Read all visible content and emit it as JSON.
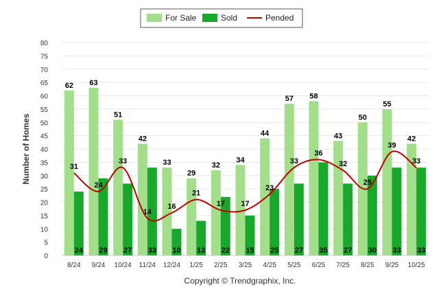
{
  "chart_data": {
    "type": "bar",
    "categories": [
      "8/24",
      "9/24",
      "10/24",
      "11/24",
      "12/24",
      "1/25",
      "2/25",
      "3/25",
      "4/25",
      "5/25",
      "6/25",
      "7/25",
      "8/25",
      "9/25",
      "10/25"
    ],
    "series": [
      {
        "name": "For Sale",
        "kind": "bar",
        "color": "#a3de8b",
        "values": [
          62,
          63,
          51,
          42,
          33,
          29,
          32,
          34,
          44,
          57,
          58,
          43,
          50,
          55,
          42
        ]
      },
      {
        "name": "Sold",
        "kind": "bar",
        "color": "#17a82c",
        "values": [
          24,
          29,
          27,
          33,
          10,
          13,
          22,
          15,
          25,
          27,
          35,
          27,
          30,
          33,
          33
        ]
      },
      {
        "name": "Pended",
        "kind": "line",
        "color": "#c00000",
        "values": [
          31,
          24,
          33,
          14,
          16,
          21,
          17,
          17,
          23,
          33,
          36,
          32,
          25,
          39,
          33
        ]
      }
    ],
    "ylabel": "Number of Homes",
    "xlabel": "",
    "ylim": [
      0,
      80
    ],
    "yticks": [
      0,
      5,
      10,
      15,
      20,
      25,
      30,
      35,
      40,
      45,
      50,
      55,
      60,
      65,
      70,
      75,
      80
    ],
    "grid": true,
    "legend": "top-center"
  },
  "footer": {
    "copyright": "Copyright © Trendgraphix, Inc."
  }
}
